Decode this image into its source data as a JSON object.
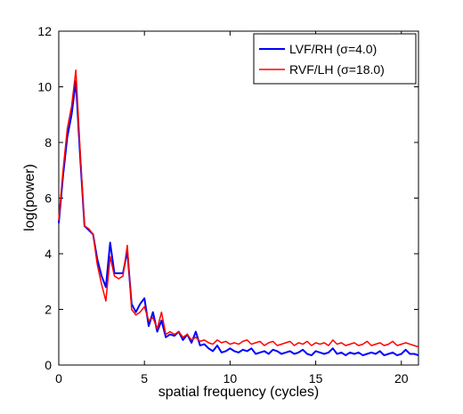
{
  "chart_data": {
    "type": "line",
    "title": "",
    "xlabel": "spatial frequency (cycles)",
    "ylabel": "log(power)",
    "xlim": [
      0,
      21
    ],
    "ylim": [
      0,
      12
    ],
    "xticks": [
      0,
      5,
      10,
      15,
      20
    ],
    "yticks": [
      0,
      2,
      4,
      6,
      8,
      10,
      12
    ],
    "grid": false,
    "legend_position": "top-right",
    "series": [
      {
        "name": "LVF/RH (σ=4.0)",
        "color": "#0000ff",
        "x": [
          0,
          0.25,
          0.5,
          0.75,
          1,
          1.25,
          1.5,
          1.75,
          2,
          2.25,
          2.5,
          2.75,
          3,
          3.25,
          3.5,
          3.75,
          4,
          4.25,
          4.5,
          4.75,
          5,
          5.25,
          5.5,
          5.75,
          6,
          6.25,
          6.5,
          6.75,
          7,
          7.25,
          7.5,
          7.75,
          8,
          8.25,
          8.5,
          8.75,
          9,
          9.25,
          9.5,
          9.75,
          10,
          10.25,
          10.5,
          10.75,
          11,
          11.25,
          11.5,
          11.75,
          12,
          12.25,
          12.5,
          12.75,
          13,
          13.25,
          13.5,
          13.75,
          14,
          14.25,
          14.5,
          14.75,
          15,
          15.25,
          15.5,
          15.75,
          16,
          16.25,
          16.5,
          16.75,
          17,
          17.25,
          17.5,
          17.75,
          18,
          18.25,
          18.5,
          18.75,
          19,
          19.25,
          19.5,
          19.75,
          20,
          20.25,
          20.5,
          20.75,
          21
        ],
        "y": [
          5.1,
          6.8,
          8.2,
          9.0,
          10.2,
          7.5,
          5.0,
          4.85,
          4.7,
          3.8,
          3.2,
          2.8,
          4.4,
          3.3,
          3.3,
          3.3,
          4.1,
          2.2,
          1.9,
          2.2,
          2.4,
          1.4,
          1.9,
          1.2,
          1.6,
          1.0,
          1.1,
          1.05,
          1.2,
          0.9,
          1.1,
          0.8,
          1.2,
          0.7,
          0.75,
          0.6,
          0.5,
          0.7,
          0.45,
          0.5,
          0.6,
          0.5,
          0.45,
          0.55,
          0.5,
          0.6,
          0.4,
          0.45,
          0.5,
          0.4,
          0.55,
          0.5,
          0.4,
          0.45,
          0.5,
          0.4,
          0.45,
          0.55,
          0.4,
          0.35,
          0.5,
          0.45,
          0.4,
          0.45,
          0.6,
          0.4,
          0.45,
          0.35,
          0.45,
          0.4,
          0.45,
          0.35,
          0.4,
          0.45,
          0.4,
          0.5,
          0.35,
          0.4,
          0.45,
          0.35,
          0.4,
          0.55,
          0.4,
          0.4,
          0.35
        ]
      },
      {
        "name": "RVF/LH (σ=18.0)",
        "color": "#ff0000",
        "x": [
          0,
          0.25,
          0.5,
          0.75,
          1,
          1.25,
          1.5,
          1.75,
          2,
          2.25,
          2.5,
          2.75,
          3,
          3.25,
          3.5,
          3.75,
          4,
          4.25,
          4.5,
          4.75,
          5,
          5.25,
          5.5,
          5.75,
          6,
          6.25,
          6.5,
          6.75,
          7,
          7.25,
          7.5,
          7.75,
          8,
          8.25,
          8.5,
          8.75,
          9,
          9.25,
          9.5,
          9.75,
          10,
          10.25,
          10.5,
          10.75,
          11,
          11.25,
          11.5,
          11.75,
          12,
          12.25,
          12.5,
          12.75,
          13,
          13.25,
          13.5,
          13.75,
          14,
          14.25,
          14.5,
          14.75,
          15,
          15.25,
          15.5,
          15.75,
          16,
          16.25,
          16.5,
          16.75,
          17,
          17.25,
          17.5,
          17.75,
          18,
          18.25,
          18.5,
          18.75,
          19,
          19.25,
          19.5,
          19.75,
          20,
          20.25,
          20.5,
          20.75,
          21
        ],
        "y": [
          5.2,
          7.0,
          8.5,
          9.3,
          10.6,
          7.7,
          5.0,
          4.9,
          4.7,
          3.6,
          2.9,
          2.3,
          3.9,
          3.2,
          3.1,
          3.2,
          4.3,
          2.0,
          1.8,
          1.9,
          2.1,
          1.6,
          1.7,
          1.3,
          1.9,
          1.1,
          1.2,
          1.1,
          1.2,
          1.0,
          1.1,
          0.9,
          1.0,
          0.85,
          0.9,
          0.8,
          0.75,
          0.9,
          0.8,
          0.85,
          0.75,
          0.8,
          0.75,
          0.85,
          0.9,
          0.75,
          0.8,
          0.85,
          0.7,
          0.8,
          0.85,
          0.7,
          0.75,
          0.8,
          0.85,
          0.7,
          0.8,
          0.75,
          0.85,
          0.7,
          0.8,
          0.75,
          0.8,
          0.7,
          0.9,
          0.75,
          0.8,
          0.7,
          0.75,
          0.8,
          0.7,
          0.75,
          0.85,
          0.7,
          0.75,
          0.8,
          0.7,
          0.75,
          0.85,
          0.7,
          0.75,
          0.8,
          0.75,
          0.7,
          0.65
        ]
      }
    ]
  }
}
